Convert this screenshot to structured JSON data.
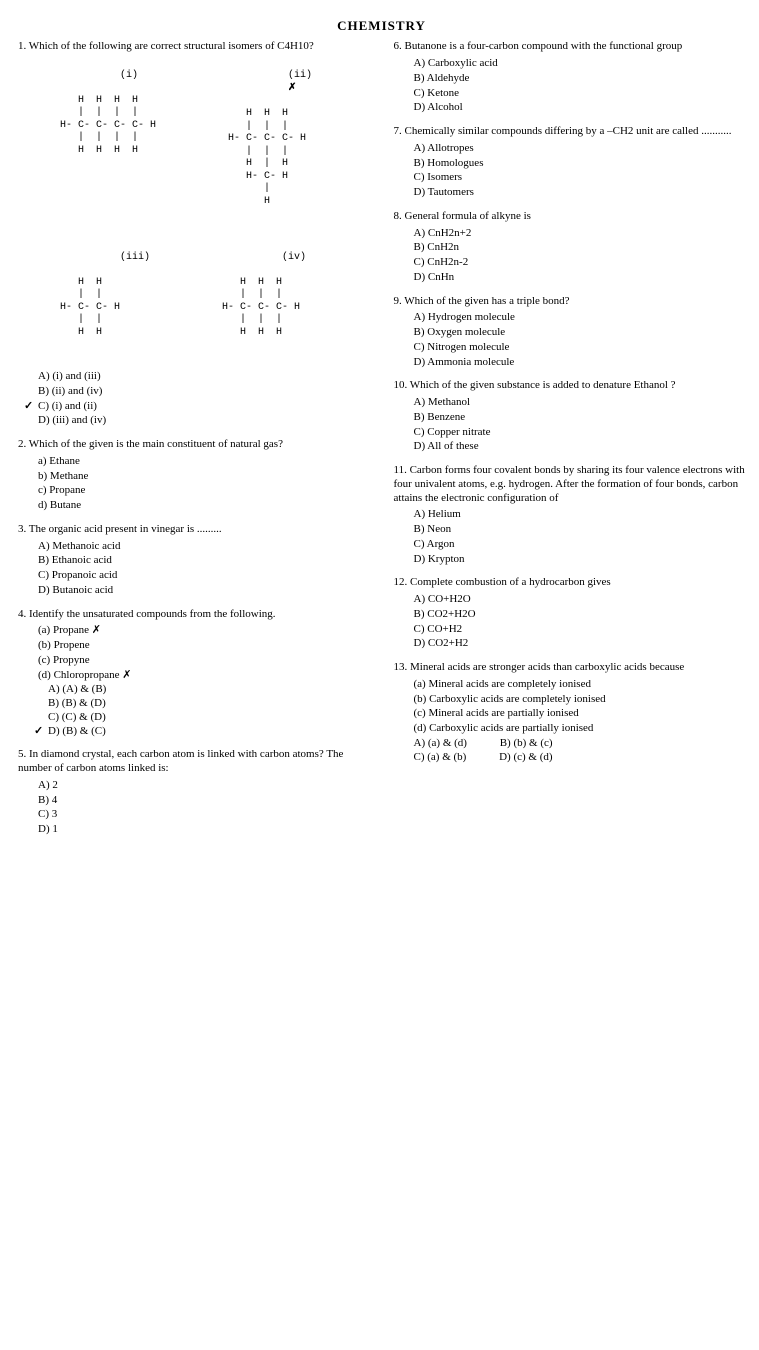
{
  "header": {
    "title": "CHEMISTRY"
  },
  "left": {
    "q1": {
      "stem": "1. Which of the following are correct structural isomers of C4H10?",
      "sketches": {
        "i_label": "(i)",
        "ii_label": "(ii)",
        "iii_label": "(iii)",
        "iv_label": "(iv)",
        "i": "     H  H  H  H\n     |  |  |  |\n  H- C- C- C- C- H\n     |  |  |  |\n     H  H  H  H",
        "ii": "     H  H  H\n     |  |  |\n  H- C- C- C- H\n     |  |  |\n     H  |  H\n     H- C- H\n        |\n        H",
        "iii": "     H  H\n     |  |\n  H- C- C- H\n     |  |\n     H  H",
        "iv": "     H  H  H\n     |  |  |\n  H- C- C- C- H\n     |  |  |\n     H  H  H"
      },
      "annot_x": "✗",
      "opts": {
        "a": "A) (i) and (iii)",
        "b": "B) (ii) and (iv)",
        "c": "C) (i) and (ii)",
        "d": "D) (iii) and (iv)"
      },
      "tick": "✓"
    },
    "q2": {
      "stem": "2. Which of the given is the main constituent of natural gas?",
      "opts": {
        "a": "a) Ethane",
        "b": "b) Methane",
        "c": "c) Propane",
        "d": "d) Butane"
      }
    },
    "q3": {
      "stem": "3. The organic acid present in vinegar is .........",
      "opts": {
        "a": "A) Methanoic acid",
        "b": "B) Ethanoic acid",
        "c": "C) Propanoic acid",
        "d": "D) Butanoic acid"
      }
    },
    "q4": {
      "stem": "4. Identify the unsaturated compounds from the following.",
      "sub": {
        "a": "(a) Propane ✗",
        "b": "(b) Propene",
        "c": "(c) Propyne",
        "d": "(d) Chloropropane ✗"
      },
      "opts": {
        "a": "A) (A) & (B)",
        "b": "B) (B) & (D)",
        "c": "C) (C) & (D)",
        "d": "D) (B) & (C)"
      },
      "tick": "✓"
    },
    "q5": {
      "stem": "5. In diamond crystal, each carbon atom is linked with carbon atoms? The number of carbon atoms linked is:",
      "opts": {
        "a": "A) 2",
        "b": "B) 4",
        "c": "C) 3",
        "d": "D) 1"
      }
    }
  },
  "right": {
    "q6": {
      "stem": "6. Butanone is a four-carbon compound with the functional group",
      "opts": {
        "a": "A) Carboxylic acid",
        "b": "B) Aldehyde",
        "c": "C) Ketone",
        "d": "D) Alcohol"
      }
    },
    "q7": {
      "stem": "7. Chemically similar compounds differing by a –CH2 unit are called ...........",
      "opts": {
        "a": "A) Allotropes",
        "b": "B) Homologues",
        "c": "C) Isomers",
        "d": "D) Tautomers"
      }
    },
    "q8": {
      "stem": "8. General formula of alkyne is",
      "opts": {
        "a": "A) CnH2n+2",
        "b": "B) CnH2n",
        "c": "C) CnH2n-2",
        "d": "D) CnHn"
      }
    },
    "q9": {
      "stem": "9. Which of the given has a triple bond?",
      "opts": {
        "a": "A) Hydrogen molecule",
        "b": "B) Oxygen molecule",
        "c": "C) Nitrogen molecule",
        "d": "D) Ammonia molecule"
      }
    },
    "q10": {
      "stem": "10. Which of the given substance is added to denature Ethanol ?",
      "opts": {
        "a": "A) Methanol",
        "b": "B) Benzene",
        "c": "C) Copper nitrate",
        "d": "D) All of these"
      }
    },
    "q11": {
      "stem": "11. Carbon forms four covalent bonds by sharing its four valence electrons with four univalent atoms, e.g. hydrogen. After the formation of four bonds, carbon attains the electronic configuration of",
      "opts": {
        "a": "A) Helium",
        "b": "B) Neon",
        "c": "C) Argon",
        "d": "D) Krypton"
      }
    },
    "q12": {
      "stem": "12. Complete combustion of a hydrocarbon gives",
      "opts": {
        "a": "A) CO+H2O",
        "b": "B) CO2+H2O",
        "c": "C) CO+H2",
        "d": "D) CO2+H2"
      }
    },
    "q13": {
      "stem": "13. Mineral acids are stronger acids than carboxylic acids because",
      "sub": {
        "a": "(a) Mineral acids are completely ionised",
        "b": "(b) Carboxylic acids are completely ionised",
        "c": "(c) Mineral acids are partially ionised",
        "d": "(d) Carboxylic acids are partially ionised"
      },
      "opts": {
        "a": "A) (a) & (d)",
        "b": "B) (b) & (c)",
        "c": "C) (a) & (b)",
        "d": "D) (c) & (d)"
      }
    }
  }
}
